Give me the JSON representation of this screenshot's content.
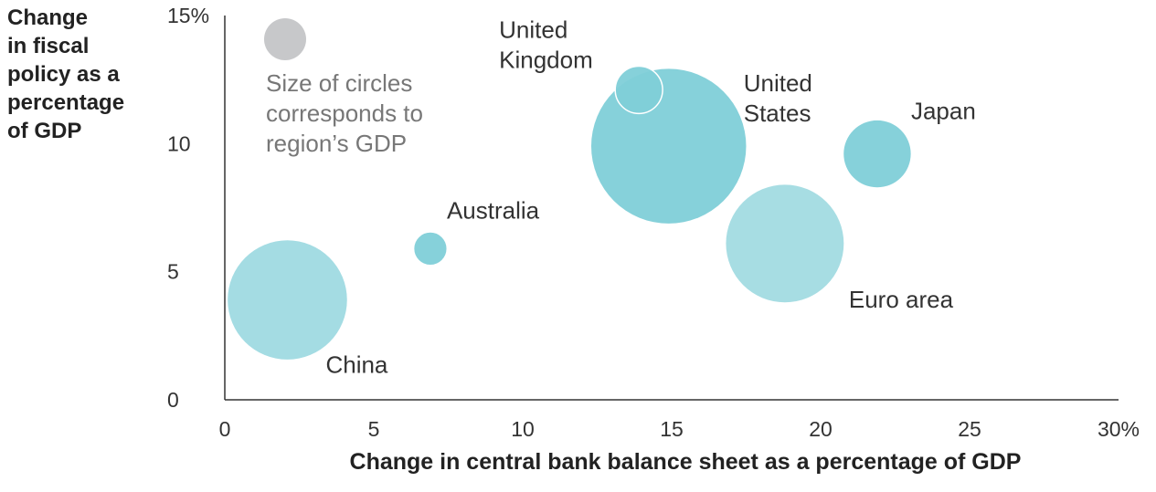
{
  "chart_data": {
    "type": "scatter",
    "xlabel": "Change in central bank balance sheet as a percentage of GDP",
    "ylabel": "Change\nin fiscal\npolicy as a\npercentage\nof GDP",
    "xlim": [
      0,
      30
    ],
    "ylim": [
      0,
      15
    ],
    "x_ticks": [
      "0",
      "5",
      "10",
      "15",
      "20",
      "25",
      "30%"
    ],
    "y_ticks": [
      "0",
      "5",
      "10",
      "15%"
    ],
    "legend_note": [
      "Size of circles",
      "corresponds to",
      "region’s GDP"
    ],
    "legend_color": "#c7c8ca",
    "points": [
      {
        "label": [
          "China"
        ],
        "x": 2.1,
        "y": 3.9,
        "size": 3.8,
        "color": "#9fdae1"
      },
      {
        "label": [
          "Australia"
        ],
        "x": 6.9,
        "y": 5.9,
        "size": 0.3,
        "color": "#7fcfd8"
      },
      {
        "label": [
          "United",
          "States"
        ],
        "x": 14.9,
        "y": 9.9,
        "size": 6.4,
        "color": "#7fcfd8"
      },
      {
        "label": [
          "United",
          "Kingdom"
        ],
        "x": 13.9,
        "y": 12.1,
        "size": 0.6,
        "color": "#7fcfd8"
      },
      {
        "label": [
          "Euro area"
        ],
        "x": 18.8,
        "y": 6.1,
        "size": 3.7,
        "color": "#a2dbe2"
      },
      {
        "label": [
          "Japan"
        ],
        "x": 21.9,
        "y": 9.6,
        "size": 1.2,
        "color": "#7fcfd8"
      }
    ]
  }
}
